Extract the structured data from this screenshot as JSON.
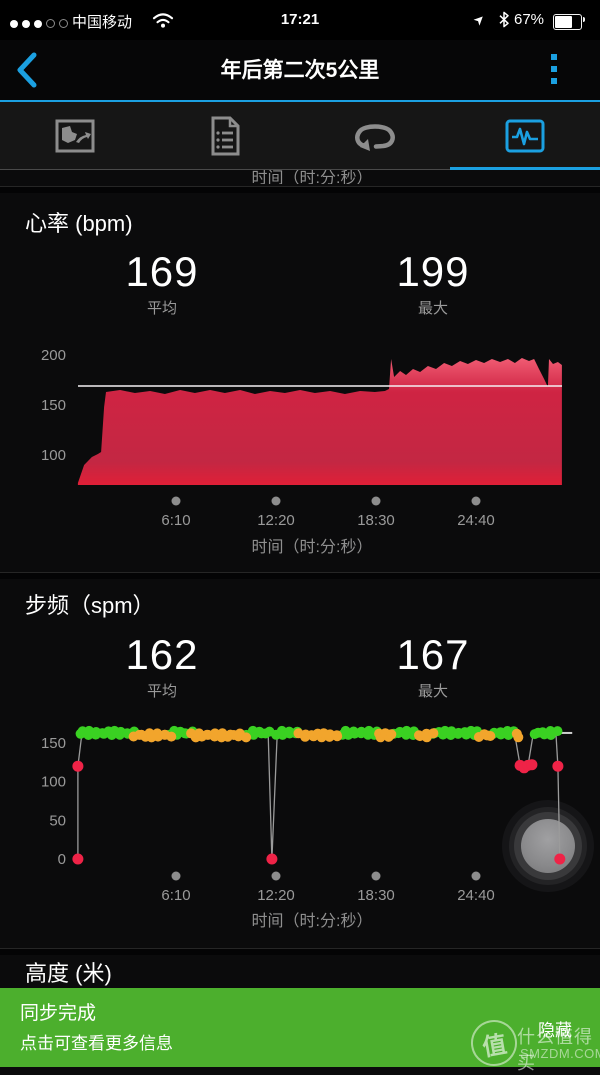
{
  "status_bar": {
    "carrier": "中国移动",
    "time": "17:21",
    "battery_percent": "67%",
    "battery_level": 67,
    "signal_filled": 3,
    "signal_total": 5
  },
  "nav": {
    "title": "年后第二次5公里"
  },
  "tabs": [
    {
      "id": "summary",
      "icon": "map-summary-icon",
      "active": false
    },
    {
      "id": "details",
      "icon": "document-icon",
      "active": false
    },
    {
      "id": "laps",
      "icon": "laps-loop-icon",
      "active": false
    },
    {
      "id": "charts",
      "icon": "chart-wave-icon",
      "active": true
    }
  ],
  "clipped_chart": {
    "xlabel": "时间（时:分:秒）"
  },
  "hr_section": {
    "title": "心率 (bpm)",
    "avg_value": "169",
    "avg_label": "平均",
    "max_value": "199",
    "max_label": "最大"
  },
  "cadence_section": {
    "title": "步频（spm）",
    "avg_value": "162",
    "avg_label": "平均",
    "max_value": "167",
    "max_label": "最大"
  },
  "elevation_section": {
    "title": "高度 (米)"
  },
  "toast": {
    "title": "同步完成",
    "subtitle": "点击可查看更多信息",
    "action": "隐藏",
    "color": "#4caf2d"
  },
  "watermark": {
    "logo_char": "值",
    "name": "什么值得买",
    "site": "SMZDM.COM"
  },
  "accent_color": "#1ba0e1",
  "chart_data": [
    {
      "type": "area",
      "name": "heart_rate",
      "title": "心率 (bpm)",
      "unit": "bpm",
      "avg": 169,
      "max": 199,
      "avg_line": 169,
      "ylim": [
        70,
        210
      ],
      "yticks": [
        200,
        150,
        100
      ],
      "xlabel": "时间（时:分:秒）",
      "xticks": [
        {
          "t": 370,
          "label": "6:10"
        },
        {
          "t": 740,
          "label": "12:20"
        },
        {
          "t": 1110,
          "label": "18:30"
        },
        {
          "t": 1480,
          "label": "24:40"
        }
      ],
      "colors": {
        "top": "#f25f76",
        "mid": "#cf2443",
        "bottom": "#e01f37",
        "avg_line": "#f4f2f3"
      },
      "points": [
        [
          7,
          72
        ],
        [
          30,
          90
        ],
        [
          59,
          98
        ],
        [
          81,
          101
        ],
        [
          93,
          103
        ],
        [
          104,
          148
        ],
        [
          111,
          163
        ],
        [
          163,
          165
        ],
        [
          218,
          162
        ],
        [
          274,
          164
        ],
        [
          329,
          161
        ],
        [
          385,
          165
        ],
        [
          440,
          162
        ],
        [
          496,
          165
        ],
        [
          551,
          162
        ],
        [
          607,
          165
        ],
        [
          662,
          161
        ],
        [
          718,
          164
        ],
        [
          773,
          162
        ],
        [
          829,
          165
        ],
        [
          884,
          162
        ],
        [
          940,
          164
        ],
        [
          995,
          161
        ],
        [
          1051,
          164
        ],
        [
          1106,
          163
        ],
        [
          1143,
          164
        ],
        [
          1158,
          166
        ],
        [
          1166,
          196
        ],
        [
          1177,
          178
        ],
        [
          1199,
          184
        ],
        [
          1221,
          180
        ],
        [
          1247,
          186
        ],
        [
          1273,
          183
        ],
        [
          1302,
          189
        ],
        [
          1332,
          186
        ],
        [
          1362,
          192
        ],
        [
          1391,
          189
        ],
        [
          1421,
          194
        ],
        [
          1450,
          191
        ],
        [
          1480,
          195
        ],
        [
          1510,
          192
        ],
        [
          1539,
          196
        ],
        [
          1569,
          193
        ],
        [
          1598,
          196
        ],
        [
          1624,
          192
        ],
        [
          1650,
          197
        ],
        [
          1676,
          194
        ],
        [
          1695,
          196
        ],
        [
          1713,
          186
        ],
        [
          1732,
          176
        ],
        [
          1746,
          168
        ],
        [
          1750,
          196
        ],
        [
          1765,
          191
        ],
        [
          1783,
          193
        ],
        [
          1798,
          190
        ]
      ]
    },
    {
      "type": "scatter",
      "name": "cadence",
      "title": "步频（spm）",
      "unit": "spm",
      "avg": 162,
      "max": 167,
      "ylim": [
        0,
        175
      ],
      "yticks": [
        150,
        100,
        50,
        0
      ],
      "xlabel": "时间（时:分:秒）",
      "xticks": [
        {
          "t": 370,
          "label": "6:10"
        },
        {
          "t": 740,
          "label": "12:20"
        },
        {
          "t": 1110,
          "label": "18:30"
        },
        {
          "t": 1480,
          "label": "24:40"
        }
      ],
      "series": [
        {
          "name": "cadence-normal",
          "color": "#3ad122",
          "value": 163,
          "segments_t": [
            [
              15,
              218
            ],
            [
              348,
              429
            ],
            [
              636,
              718
            ],
            [
              744,
              829
            ],
            [
              984,
              1117
            ],
            [
              1177,
              1265
            ],
            [
              1317,
              1495
            ],
            [
              1539,
              1628
            ],
            [
              1698,
              1780
            ]
          ]
        },
        {
          "name": "cadence-low",
          "color": "#f2a52c",
          "value": 160,
          "segments_t": [
            [
              218,
              348
            ],
            [
              429,
              636
            ],
            [
              829,
              984
            ],
            [
              1117,
              1177
            ],
            [
              1265,
              1317
            ],
            [
              1495,
              1539
            ],
            [
              1628,
              1643
            ]
          ]
        },
        {
          "name": "cadence-stopped",
          "color": "#ef2347",
          "points": [
            [
              7,
              120
            ],
            [
              7,
              0
            ],
            [
              725,
              0
            ],
            [
              1643,
              121
            ],
            [
              1658,
              118
            ],
            [
              1672,
              121
            ],
            [
              1687,
              122
            ],
            [
              1783,
              120
            ],
            [
              1790,
              0
            ]
          ]
        }
      ],
      "line_path": [
        [
          7,
          0
        ],
        [
          7,
          120
        ],
        [
          22,
          162
        ],
        [
          711,
          161
        ],
        [
          725,
          0
        ],
        [
          744,
          158
        ],
        [
          1624,
          160
        ],
        [
          1643,
          121
        ],
        [
          1672,
          120
        ],
        [
          1691,
          160
        ],
        [
          1776,
          161
        ],
        [
          1783,
          120
        ],
        [
          1790,
          0
        ]
      ],
      "tail_dash": {
        "from_t": 1792,
        "to_t": 1836,
        "value": 163
      },
      "line_color": "#9b9b9b"
    }
  ]
}
